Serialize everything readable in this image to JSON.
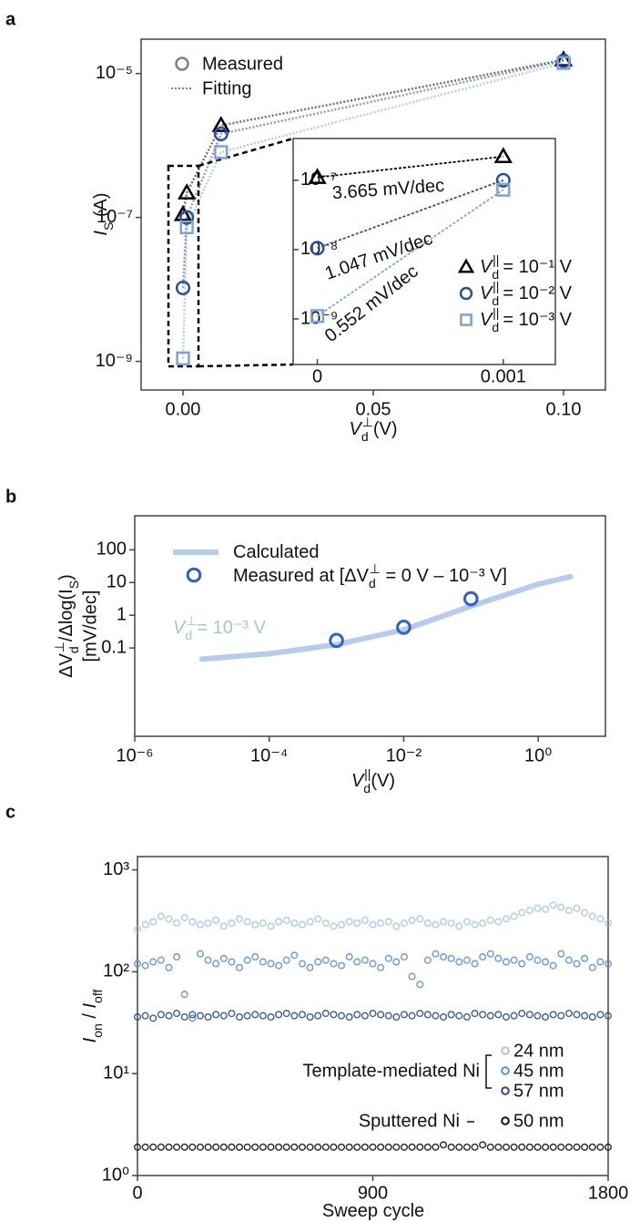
{
  "chart_data": [
    {
      "type": "scatter",
      "panel_label": "a",
      "x": [
        0,
        0.001,
        0.01,
        0.1
      ],
      "xlim": [
        -0.011,
        0.111
      ],
      "ylim": [
        4e-10,
        3e-05
      ],
      "log_y": true,
      "xticks": [
        {
          "value": 0,
          "label": "0.00"
        },
        {
          "value": 0.05,
          "label": "0.05"
        },
        {
          "value": 0.1,
          "label": "0.10"
        }
      ],
      "yticks": [
        {
          "value": 1e-09,
          "label": "10⁻⁹"
        },
        {
          "value": 1e-07,
          "label": "10⁻⁷"
        },
        {
          "value": 1e-05,
          "label": "10⁻⁵"
        }
      ],
      "xlabel": [
        {
          "text": "V",
          "style": "italic"
        },
        {
          "text": "d",
          "style": "sub"
        },
        {
          "text": "⊥",
          "style": "sup"
        },
        {
          "text": "(V)",
          "style": "normal"
        }
      ],
      "ylabel": [
        {
          "text": "I",
          "style": "italic"
        },
        {
          "text": "S",
          "style": "sub"
        },
        {
          "text": " (A)",
          "style": "normal"
        }
      ],
      "legend": {
        "measured": "Measured",
        "fitting": "Fitting",
        "color": "#808080"
      },
      "series_label": [
        {
          "text": "V",
          "style": "italic"
        },
        {
          "text": "d",
          "style": "sub"
        },
        {
          "text": "||",
          "style": "sup"
        }
      ],
      "series": [
        {
          "name": "= 10⁻¹ V",
          "color": "#000000",
          "marker": "triangle",
          "values": [
            1.1e-07,
            2.2e-07,
            1.9e-06,
            1.55e-05
          ]
        },
        {
          "name": "= 10⁻² V",
          "color": "#2a4d9e",
          "marker": "circle",
          "values": [
            1.05e-08,
            1e-07,
            1.45e-06,
            1.5e-05
          ]
        },
        {
          "name": "= 10⁻³ V",
          "color": "#7fa2d6",
          "marker": "square",
          "values": [
            1.1e-09,
            7.3e-08,
            8.1e-07,
            1.4e-05
          ]
        }
      ],
      "inset": {
        "xlim": [
          -0.00013,
          0.00128
        ],
        "ylim": [
          2.2e-10,
          4e-07
        ],
        "xticks": [
          0,
          0.001
        ],
        "yticks": [
          {
            "value": 1e-09,
            "label": "10⁻⁹"
          },
          {
            "value": 1e-08,
            "label": "10⁻⁸"
          },
          {
            "value": 1e-07,
            "label": "10⁻⁷"
          }
        ],
        "annotations": [
          {
            "text": "3.665 mV/dec",
            "color": "#000000"
          },
          {
            "text": "1.047 mV/dec",
            "color": "#2a4d9e"
          },
          {
            "text": "0.552 mV/dec",
            "color": "#7fa2d6"
          }
        ]
      }
    },
    {
      "type": "scatter",
      "panel_label": "b",
      "log_x": true,
      "log_y": true,
      "xlim": [
        1e-06,
        10
      ],
      "ylim": [
        0.0002,
        1100
      ],
      "xticks": [
        {
          "value": 1e-06,
          "label": "10⁻⁶"
        },
        {
          "value": 0.0001,
          "label": "10⁻⁴"
        },
        {
          "value": 0.01,
          "label": "10⁻²"
        },
        {
          "value": 1,
          "label": "10⁰"
        }
      ],
      "yticks": [
        0.1,
        1,
        10,
        100
      ],
      "xlabel": [
        {
          "text": "V",
          "style": "italic"
        },
        {
          "text": "d",
          "style": "sub"
        },
        {
          "text": "||",
          "style": "sup"
        },
        {
          "text": "(V)",
          "style": "normal"
        }
      ],
      "ylabel": [
        {
          "text": "ΔV",
          "style": "normal"
        },
        {
          "text": "d",
          "style": "sub"
        },
        {
          "text": "⊥",
          "style": "sup"
        },
        {
          "text": "/Δlog(I",
          "style": "normal"
        },
        {
          "text": "S",
          "style": "sub"
        },
        {
          "text": ")",
          "style": "normal"
        }
      ],
      "ylabel_line2": "[mV/dec]",
      "series": [
        {
          "name": [
            {
              "text": "Calculated",
              "style": "normal"
            }
          ],
          "kind": "line",
          "color": "#b7cbec",
          "x": [
            1e-05,
            0.0001,
            0.001,
            0.01,
            0.1,
            1,
            3
          ],
          "values": [
            0.046,
            0.067,
            0.127,
            0.36,
            1.9,
            8.9,
            15
          ]
        },
        {
          "name": [
            {
              "text": "Measured at [ΔV",
              "style": "normal"
            },
            {
              "text": "d",
              "style": "sub"
            },
            {
              "text": "⊥",
              "style": "sup"
            },
            {
              "text": " = 0 V – 10⁻³ V]",
              "style": "normal"
            }
          ],
          "kind": "marker",
          "color": "#3160c8",
          "x": [
            0.001,
            0.01,
            0.1
          ],
          "values": [
            0.17,
            0.43,
            3.2
          ]
        }
      ],
      "annotation": {
        "parts": [
          {
            "text": "V",
            "style": "italic"
          },
          {
            "text": "d",
            "style": "sub"
          },
          {
            "text": "⊥",
            "style": "sup"
          },
          {
            "text": "= 10⁻³ V",
            "style": "normal"
          }
        ],
        "color": "#a9c0e6"
      }
    },
    {
      "type": "scatter",
      "panel_label": "c",
      "log_y": true,
      "xlim": [
        0,
        1800
      ],
      "ylim": [
        1,
        1350
      ],
      "xticks": [
        0,
        900,
        1800
      ],
      "yticks": [
        {
          "value": 1,
          "label": "10⁰"
        },
        {
          "value": 10,
          "label": "10¹"
        },
        {
          "value": 100,
          "label": "10²"
        },
        {
          "value": 1000,
          "label": "10³"
        }
      ],
      "xlabel": [
        {
          "text": "Sweep cycle",
          "style": "normal"
        }
      ],
      "ylabel": [
        {
          "text": "I",
          "style": "italic"
        },
        {
          "text": "on",
          "style": "sub"
        },
        {
          "text": " / ",
          "style": "normal"
        },
        {
          "text": "I",
          "style": "italic"
        },
        {
          "text": "off",
          "style": "sub"
        }
      ],
      "group_labels": [
        "Template-mediated Ni",
        "Sputtered Ni"
      ],
      "x": [
        0,
        30,
        60,
        90,
        120,
        150,
        180,
        210,
        240,
        270,
        300,
        330,
        360,
        390,
        420,
        450,
        480,
        510,
        540,
        570,
        600,
        630,
        660,
        690,
        720,
        750,
        780,
        810,
        840,
        870,
        900,
        930,
        960,
        990,
        1020,
        1050,
        1080,
        1110,
        1140,
        1170,
        1200,
        1230,
        1260,
        1290,
        1320,
        1350,
        1380,
        1410,
        1440,
        1470,
        1500,
        1530,
        1560,
        1590,
        1620,
        1650,
        1680,
        1710,
        1740,
        1770,
        1800
      ],
      "series": [
        {
          "name": "24 nm",
          "color": "#a9c2ea",
          "values": [
            260,
            290,
            310,
            350,
            330,
            300,
            340,
            310,
            290,
            300,
            320,
            280,
            300,
            330,
            310,
            290,
            300,
            280,
            310,
            320,
            300,
            290,
            310,
            330,
            300,
            280,
            290,
            310,
            300,
            320,
            290,
            300,
            310,
            280,
            300,
            320,
            330,
            300,
            290,
            310,
            300,
            280,
            310,
            290,
            300,
            320,
            310,
            330,
            350,
            380,
            400,
            420,
            410,
            450,
            430,
            400,
            420,
            380,
            350,
            330,
            300
          ]
        },
        {
          "name": "45 nm",
          "color": "#5b8be0",
          "values": [
            120,
            115,
            125,
            130,
            110,
            140,
            60,
            35,
            150,
            130,
            120,
            135,
            125,
            110,
            130,
            140,
            125,
            120,
            115,
            130,
            145,
            120,
            110,
            125,
            130,
            120,
            115,
            140,
            125,
            130,
            120,
            110,
            135,
            125,
            140,
            90,
            75,
            130,
            150,
            140,
            135,
            125,
            130,
            120,
            140,
            150,
            135,
            125,
            130,
            120,
            140,
            130,
            125,
            115,
            150,
            130,
            120,
            135,
            110,
            125,
            120
          ]
        },
        {
          "name": "57 nm",
          "color": "#2c4a80",
          "values": [
            36,
            37,
            35,
            38,
            37,
            39,
            36,
            38,
            37,
            36,
            38,
            37,
            39,
            36,
            37,
            38,
            37,
            36,
            38,
            39,
            37,
            38,
            36,
            37,
            39,
            38,
            37,
            36,
            38,
            37,
            39,
            38,
            37,
            36,
            38,
            37,
            39,
            38,
            37,
            36,
            38,
            37,
            36,
            39,
            38,
            37,
            38,
            36,
            37,
            39,
            38,
            37,
            36,
            38,
            37,
            39,
            38,
            37,
            36,
            38,
            37
          ]
        },
        {
          "name": "50 nm",
          "color": "#111111",
          "values": [
            1.9,
            1.9,
            1.9,
            1.9,
            1.9,
            1.9,
            1.9,
            1.9,
            1.9,
            1.9,
            1.9,
            1.9,
            1.9,
            1.9,
            1.9,
            1.9,
            1.9,
            1.9,
            1.9,
            1.9,
            1.9,
            1.9,
            1.9,
            1.9,
            1.9,
            1.9,
            1.9,
            1.9,
            1.9,
            1.9,
            1.9,
            1.9,
            1.9,
            1.9,
            1.9,
            1.9,
            1.9,
            1.9,
            1.9,
            2.0,
            1.9,
            1.9,
            1.9,
            1.9,
            2.0,
            1.9,
            1.9,
            1.9,
            1.9,
            1.9,
            1.9,
            1.9,
            1.9,
            1.9,
            1.9,
            1.9,
            1.9,
            1.9,
            1.9,
            1.9,
            1.9
          ]
        }
      ]
    }
  ]
}
